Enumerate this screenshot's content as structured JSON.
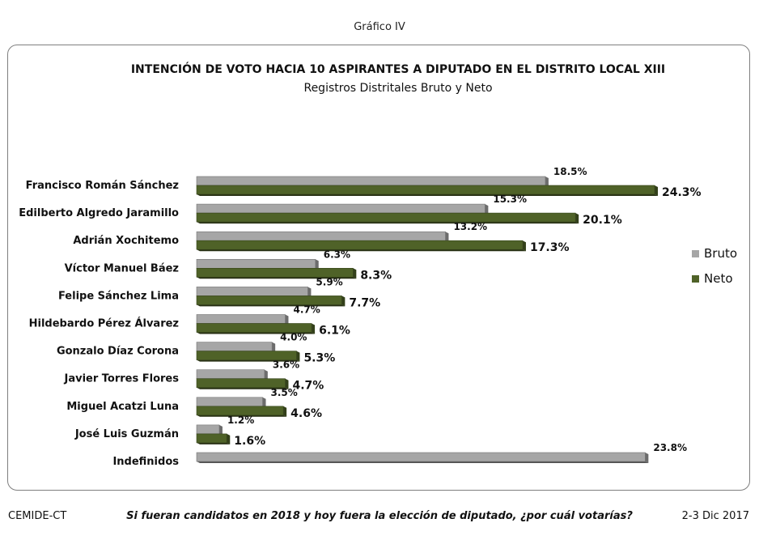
{
  "figure_label": "Gráfico  IV",
  "footer": {
    "source": "CEMIDE-CT",
    "question": "Si fueran candidatos en 2018 y hoy fuera la elección de diputado, ¿por cuál votarías?",
    "date": "2-3 Dic 2017"
  },
  "chart_data": {
    "type": "bar",
    "orientation": "horizontal",
    "title": "INTENCIÓN DE VOTO HACIA 10 ASPIRANTES A DIPUTADO EN EL DISTRITO LOCAL XIII",
    "subtitle": "Registros Distritales Bruto y Neto",
    "categories": [
      "Francisco Román Sánchez",
      "Edilberto Algredo Jaramillo",
      "Adrián Xochitemo",
      "Víctor Manuel Báez",
      "Felipe Sánchez Lima",
      "Hildebardo Pérez Álvarez",
      "Gonzalo Díaz Corona",
      "Javier Torres Flores",
      "Miguel Acatzi Luna",
      "José Luis Guzmán",
      "Indefinidos"
    ],
    "series": [
      {
        "name": "Bruto",
        "color": "#a6a6a6",
        "values": [
          18.5,
          15.3,
          13.2,
          6.3,
          5.9,
          4.7,
          4.0,
          3.6,
          3.5,
          1.2,
          23.8
        ],
        "labels": [
          "18.5%",
          "15.3%",
          "13.2%",
          "6.3%",
          "5.9%",
          "4.7%",
          "4.0%",
          "3.6%",
          "3.5%",
          "1.2%",
          "23.8%"
        ]
      },
      {
        "name": "Neto",
        "color": "#4f6228",
        "values": [
          24.3,
          20.1,
          17.3,
          8.3,
          7.7,
          6.1,
          5.3,
          4.7,
          4.6,
          1.6,
          null
        ],
        "labels": [
          "24.3%",
          "20.1%",
          "17.3%",
          "8.3%",
          "7.7%",
          "6.1%",
          "5.3%",
          "4.7%",
          "4.6%",
          "1.6%",
          null
        ]
      }
    ],
    "xlim": [
      0,
      25
    ],
    "legend": "right"
  }
}
